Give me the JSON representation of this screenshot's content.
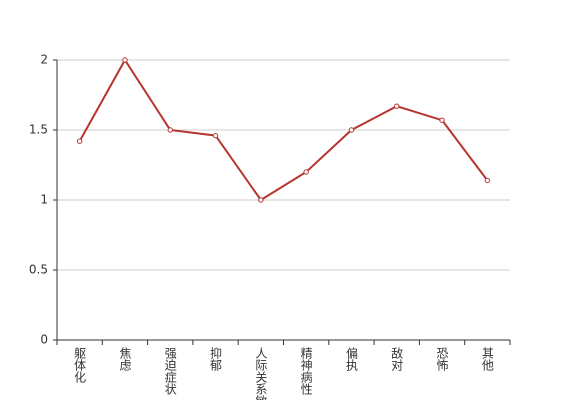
{
  "chart_data": {
    "type": "line",
    "categories": [
      "躯体化",
      "焦虑",
      "强迫症状",
      "抑郁",
      "人际关系敏感",
      "精神病性",
      "偏执",
      "敌对",
      "恐怖",
      "其他"
    ],
    "values": [
      1.42,
      2,
      1.5,
      1.46,
      1,
      1.2,
      1.5,
      1.67,
      1.57,
      1.14
    ],
    "color": "#b5352f",
    "ylim": [
      0,
      2
    ],
    "yticks": [
      0,
      0.5,
      1,
      1.5,
      2
    ],
    "grid": true
  }
}
